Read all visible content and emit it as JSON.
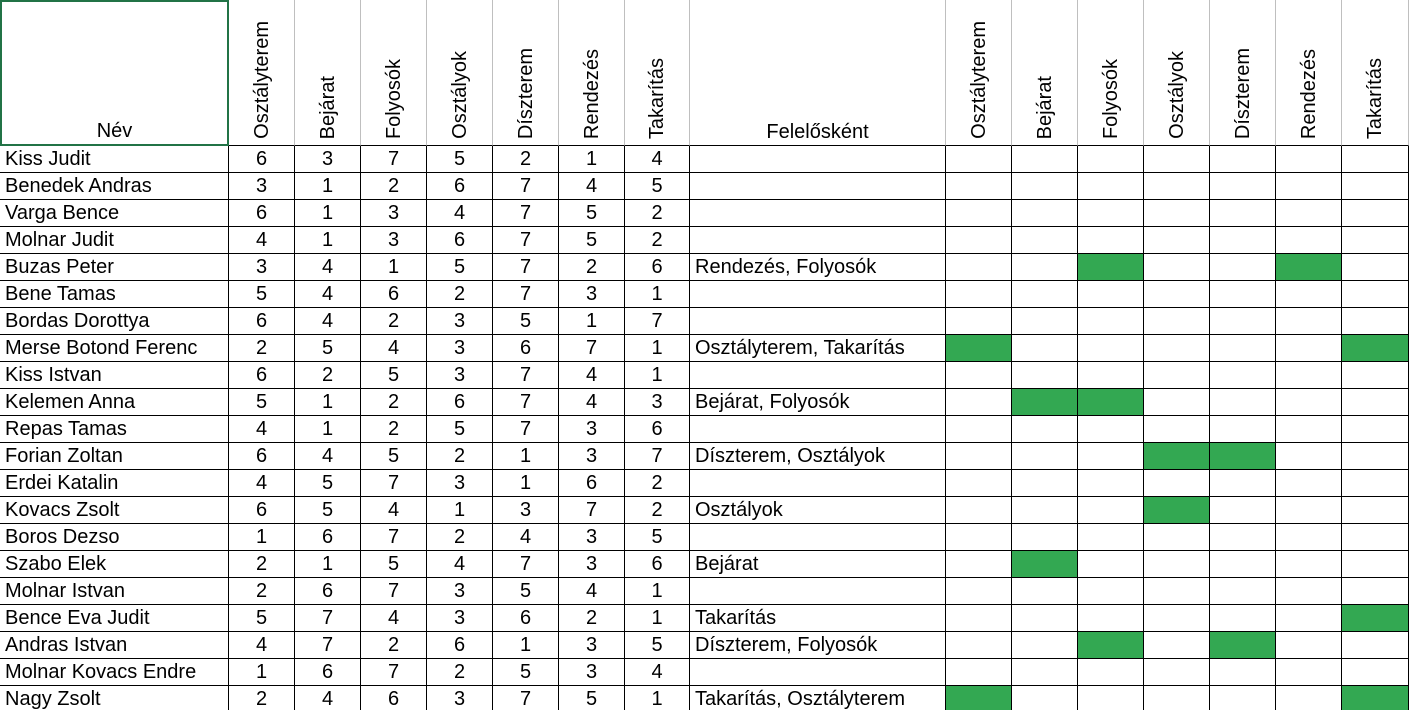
{
  "headers": {
    "name": "Név",
    "tasks": [
      "Osztályterem",
      "Bejárat",
      "Folyosók",
      "Osztályok",
      "Díszterem",
      "Rendezés",
      "Takarítás"
    ],
    "role": "Felelősként",
    "flag_tasks": [
      "Osztályterem",
      "Bejárat",
      "Folyosók",
      "Osztályok",
      "Díszterem",
      "Rendezés",
      "Takarítás"
    ]
  },
  "rows": [
    {
      "name": "Kiss Judit",
      "scores": [
        6,
        3,
        7,
        5,
        2,
        1,
        4
      ],
      "role": null,
      "highlight": [
        false,
        false,
        false,
        false,
        false,
        false,
        false
      ]
    },
    {
      "name": "Benedek Andras",
      "scores": [
        3,
        1,
        2,
        6,
        7,
        4,
        5
      ],
      "role": null,
      "highlight": [
        false,
        false,
        false,
        false,
        false,
        false,
        false
      ]
    },
    {
      "name": "Varga Bence",
      "scores": [
        6,
        1,
        3,
        4,
        7,
        5,
        2
      ],
      "role": null,
      "highlight": [
        false,
        false,
        false,
        false,
        false,
        false,
        false
      ]
    },
    {
      "name": "Molnar Judit",
      "scores": [
        4,
        1,
        3,
        6,
        7,
        5,
        2
      ],
      "role": null,
      "highlight": [
        false,
        false,
        false,
        false,
        false,
        false,
        false
      ]
    },
    {
      "name": "Buzas Peter",
      "scores": [
        3,
        4,
        1,
        5,
        7,
        2,
        6
      ],
      "role": "Rendezés, Folyosók",
      "highlight": [
        false,
        false,
        true,
        false,
        false,
        true,
        false
      ]
    },
    {
      "name": "Bene Tamas",
      "scores": [
        5,
        4,
        6,
        2,
        7,
        3,
        1
      ],
      "role": null,
      "highlight": [
        false,
        false,
        false,
        false,
        false,
        false,
        false
      ]
    },
    {
      "name": "Bordas Dorottya",
      "scores": [
        6,
        4,
        2,
        3,
        5,
        1,
        7
      ],
      "role": null,
      "highlight": [
        false,
        false,
        false,
        false,
        false,
        false,
        false
      ]
    },
    {
      "name": "Merse Botond Ferenc",
      "scores": [
        2,
        5,
        4,
        3,
        6,
        7,
        1
      ],
      "role": "Osztályterem, Takarítás",
      "highlight": [
        true,
        false,
        false,
        false,
        false,
        false,
        true
      ]
    },
    {
      "name": "Kiss Istvan",
      "scores": [
        6,
        2,
        5,
        3,
        7,
        4,
        1
      ],
      "role": null,
      "highlight": [
        false,
        false,
        false,
        false,
        false,
        false,
        false
      ]
    },
    {
      "name": "Kelemen Anna",
      "scores": [
        5,
        1,
        2,
        6,
        7,
        4,
        3
      ],
      "role": "Bejárat, Folyosók",
      "highlight": [
        false,
        true,
        true,
        false,
        false,
        false,
        false
      ]
    },
    {
      "name": "Repas Tamas",
      "scores": [
        4,
        1,
        2,
        5,
        7,
        3,
        6
      ],
      "role": null,
      "highlight": [
        false,
        false,
        false,
        false,
        false,
        false,
        false
      ]
    },
    {
      "name": "Forian Zoltan",
      "scores": [
        6,
        4,
        5,
        2,
        1,
        3,
        7
      ],
      "role": "Díszterem, Osztályok",
      "highlight": [
        false,
        false,
        false,
        true,
        true,
        false,
        false
      ]
    },
    {
      "name": "Erdei Katalin",
      "scores": [
        4,
        5,
        7,
        3,
        1,
        6,
        2
      ],
      "role": null,
      "highlight": [
        false,
        false,
        false,
        false,
        false,
        false,
        false
      ]
    },
    {
      "name": "Kovacs Zsolt",
      "scores": [
        6,
        5,
        4,
        1,
        3,
        7,
        2
      ],
      "role": "Osztályok",
      "highlight": [
        false,
        false,
        false,
        true,
        false,
        false,
        false
      ]
    },
    {
      "name": "Boros Dezso",
      "scores": [
        1,
        6,
        7,
        2,
        4,
        3,
        5
      ],
      "role": null,
      "highlight": [
        false,
        false,
        false,
        false,
        false,
        false,
        false
      ]
    },
    {
      "name": "Szabo Elek",
      "scores": [
        2,
        1,
        5,
        4,
        7,
        3,
        6
      ],
      "role": "Bejárat",
      "highlight": [
        false,
        true,
        false,
        false,
        false,
        false,
        false
      ]
    },
    {
      "name": "Molnar Istvan",
      "scores": [
        2,
        6,
        7,
        3,
        5,
        4,
        1
      ],
      "role": null,
      "highlight": [
        false,
        false,
        false,
        false,
        false,
        false,
        false
      ]
    },
    {
      "name": "Bence Eva Judit",
      "scores": [
        5,
        7,
        4,
        3,
        6,
        2,
        1
      ],
      "role": "Takarítás",
      "highlight": [
        false,
        false,
        false,
        false,
        false,
        false,
        true
      ]
    },
    {
      "name": "Andras Istvan",
      "scores": [
        4,
        7,
        2,
        6,
        1,
        3,
        5
      ],
      "role": "Díszterem, Folyosók",
      "highlight": [
        false,
        false,
        true,
        false,
        true,
        false,
        false
      ]
    },
    {
      "name": "Molnar Kovacs Endre",
      "scores": [
        1,
        6,
        7,
        2,
        5,
        3,
        4
      ],
      "role": null,
      "highlight": [
        false,
        false,
        false,
        false,
        false,
        false,
        false
      ]
    },
    {
      "name": "Nagy Zsolt",
      "scores": [
        2,
        4,
        6,
        3,
        7,
        5,
        1
      ],
      "role": "Takarítás, Osztályterem",
      "highlight": [
        true,
        false,
        false,
        false,
        false,
        false,
        true
      ]
    }
  ]
}
